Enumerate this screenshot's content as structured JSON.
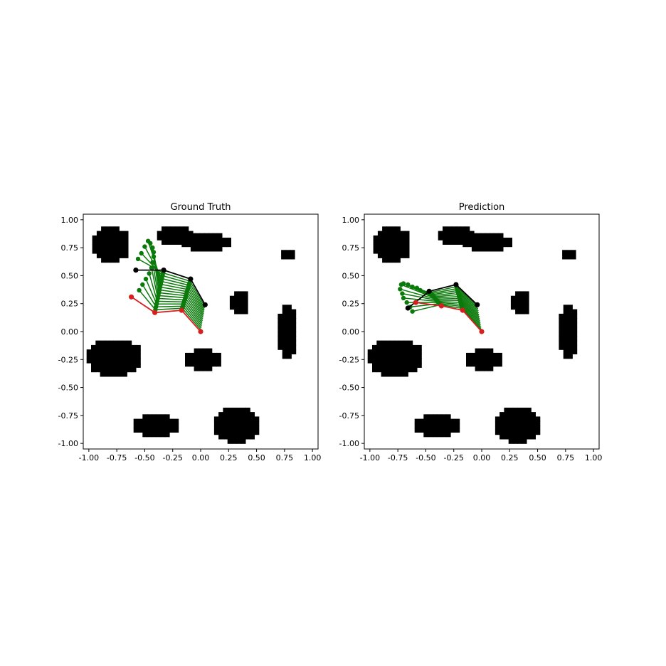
{
  "colors": {
    "obstacle": "#000000",
    "start": "#d62020",
    "goal": "#000000",
    "trajectory": "#0a7a0a"
  },
  "chart_data": [
    {
      "type": "scatter",
      "title": "Ground Truth",
      "xlim": [
        -1.05,
        1.05
      ],
      "ylim": [
        -1.05,
        1.05
      ],
      "xticks": [
        "-1.00",
        "-0.75",
        "-0.50",
        "-0.25",
        "0.00",
        "0.25",
        "0.50",
        "0.75",
        "1.00"
      ],
      "yticks": [
        "1.00",
        "0.75",
        "0.50",
        "0.25",
        "0.00",
        "-0.25",
        "-0.50",
        "-0.75",
        "-1.00"
      ],
      "xtick_values": [
        -1,
        -0.75,
        -0.5,
        -0.25,
        0,
        0.25,
        0.5,
        0.75,
        1
      ],
      "ytick_values": [
        1,
        0.75,
        0.5,
        0.25,
        0,
        -0.25,
        -0.5,
        -0.75,
        -1
      ],
      "grid": false,
      "obstacles": [
        {
          "cx": -0.8,
          "cy": 0.78,
          "rx": 0.17,
          "ry": 0.16
        },
        {
          "cx": -0.22,
          "cy": 0.86,
          "rx": 0.17,
          "ry": 0.08
        },
        {
          "cx": 0.05,
          "cy": 0.8,
          "rx": 0.22,
          "ry": 0.08
        },
        {
          "cx": 0.79,
          "cy": 0.7,
          "rx": 0.07,
          "ry": 0.05
        },
        {
          "cx": 0.35,
          "cy": 0.27,
          "rx": 0.09,
          "ry": 0.11
        },
        {
          "cx": 0.78,
          "cy": 0.0,
          "rx": 0.09,
          "ry": 0.24
        },
        {
          "cx": -0.77,
          "cy": -0.23,
          "rx": 0.25,
          "ry": 0.17
        },
        {
          "cx": 0.02,
          "cy": -0.25,
          "rx": 0.16,
          "ry": 0.1
        },
        {
          "cx": -0.4,
          "cy": -0.84,
          "rx": 0.2,
          "ry": 0.1
        },
        {
          "cx": 0.32,
          "cy": -0.83,
          "rx": 0.2,
          "ry": 0.17
        }
      ],
      "start_config": {
        "x": [
          0.0,
          -0.17,
          -0.41,
          -0.62
        ],
        "y": [
          0.0,
          0.19,
          0.17,
          0.31
        ]
      },
      "goal_config": {
        "x": [
          0.04,
          -0.09,
          -0.33,
          -0.58
        ],
        "y": [
          0.24,
          0.47,
          0.55,
          0.55
        ]
      },
      "intermediate_tip_trace": {
        "x": [
          -0.55,
          -0.52,
          -0.49,
          -0.46,
          -0.44,
          -0.43,
          -0.42,
          -0.42,
          -0.43,
          -0.45,
          -0.47,
          -0.5,
          -0.53,
          -0.56
        ],
        "y": [
          0.37,
          0.42,
          0.47,
          0.52,
          0.57,
          0.62,
          0.67,
          0.71,
          0.75,
          0.79,
          0.81,
          0.76,
          0.7,
          0.65
        ]
      }
    },
    {
      "type": "scatter",
      "title": "Prediction",
      "xlim": [
        -1.05,
        1.05
      ],
      "ylim": [
        -1.05,
        1.05
      ],
      "xticks": [
        "-1.00",
        "-0.75",
        "-0.50",
        "-0.25",
        "0.00",
        "0.25",
        "0.50",
        "0.75",
        "1.00"
      ],
      "yticks": [
        "1.00",
        "0.75",
        "0.50",
        "0.25",
        "0.00",
        "-0.25",
        "-0.50",
        "-0.75",
        "-1.00"
      ],
      "xtick_values": [
        -1,
        -0.75,
        -0.5,
        -0.25,
        0,
        0.25,
        0.5,
        0.75,
        1
      ],
      "ytick_values": [
        1,
        0.75,
        0.5,
        0.25,
        0,
        -0.25,
        -0.5,
        -0.75,
        -1
      ],
      "grid": false,
      "obstacles": [
        {
          "cx": -0.8,
          "cy": 0.78,
          "rx": 0.17,
          "ry": 0.16
        },
        {
          "cx": -0.22,
          "cy": 0.86,
          "rx": 0.17,
          "ry": 0.08
        },
        {
          "cx": 0.05,
          "cy": 0.8,
          "rx": 0.22,
          "ry": 0.08
        },
        {
          "cx": 0.79,
          "cy": 0.7,
          "rx": 0.07,
          "ry": 0.05
        },
        {
          "cx": 0.35,
          "cy": 0.27,
          "rx": 0.09,
          "ry": 0.11
        },
        {
          "cx": 0.78,
          "cy": 0.0,
          "rx": 0.09,
          "ry": 0.24
        },
        {
          "cx": -0.77,
          "cy": -0.23,
          "rx": 0.25,
          "ry": 0.17
        },
        {
          "cx": 0.02,
          "cy": -0.25,
          "rx": 0.16,
          "ry": 0.1
        },
        {
          "cx": -0.4,
          "cy": -0.84,
          "rx": 0.2,
          "ry": 0.1
        },
        {
          "cx": 0.32,
          "cy": -0.83,
          "rx": 0.2,
          "ry": 0.17
        }
      ],
      "start_config": {
        "x": [
          0.0,
          -0.17,
          -0.36,
          -0.59
        ],
        "y": [
          0.0,
          0.19,
          0.23,
          0.26
        ]
      },
      "goal_config": {
        "x": [
          -0.04,
          -0.23,
          -0.47,
          -0.66
        ],
        "y": [
          0.24,
          0.42,
          0.36,
          0.21
        ]
      },
      "intermediate_tip_trace": {
        "x": [
          -0.62,
          -0.64,
          -0.67,
          -0.7,
          -0.71,
          -0.73,
          -0.72,
          -0.7,
          -0.66,
          -0.62,
          -0.58,
          -0.55
        ],
        "y": [
          0.18,
          0.22,
          0.26,
          0.3,
          0.34,
          0.38,
          0.42,
          0.43,
          0.42,
          0.4,
          0.39,
          0.37
        ]
      }
    }
  ]
}
